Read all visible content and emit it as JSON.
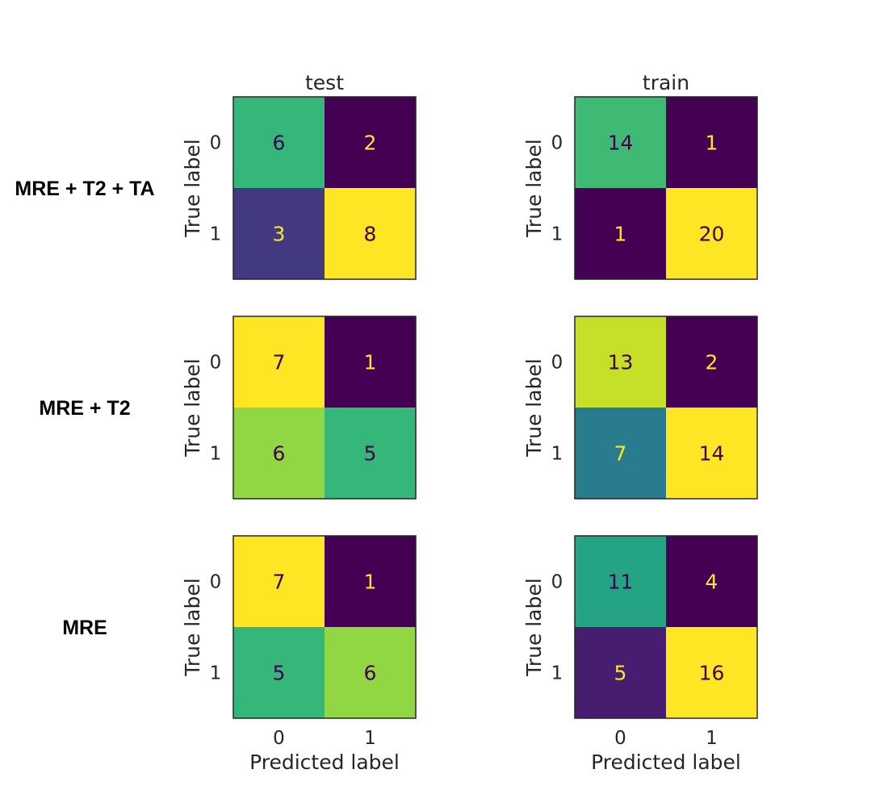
{
  "chart_data": {
    "type": "heatmap",
    "colormap": "viridis",
    "columns": [
      "test",
      "train"
    ],
    "rows": [
      "MRE + T2 + TA",
      "MRE + T2",
      "MRE"
    ],
    "ylabel": "True label",
    "xlabel": "Predicted label",
    "tick_labels": [
      "0",
      "1"
    ],
    "matrices": [
      [
        {
          "row": "MRE + T2 + TA",
          "split": "test",
          "values": [
            [
              6,
              2
            ],
            [
              3,
              8
            ]
          ]
        },
        {
          "row": "MRE + T2 + TA",
          "split": "train",
          "values": [
            [
              14,
              1
            ],
            [
              1,
              20
            ]
          ]
        }
      ],
      [
        {
          "row": "MRE + T2",
          "split": "test",
          "values": [
            [
              7,
              1
            ],
            [
              6,
              5
            ]
          ]
        },
        {
          "row": "MRE + T2",
          "split": "train",
          "values": [
            [
              13,
              2
            ],
            [
              7,
              14
            ]
          ]
        }
      ],
      [
        {
          "row": "MRE",
          "split": "test",
          "values": [
            [
              7,
              1
            ],
            [
              5,
              6
            ]
          ]
        },
        {
          "row": "MRE",
          "split": "train",
          "values": [
            [
              11,
              4
            ],
            [
              5,
              16
            ]
          ]
        }
      ]
    ]
  }
}
